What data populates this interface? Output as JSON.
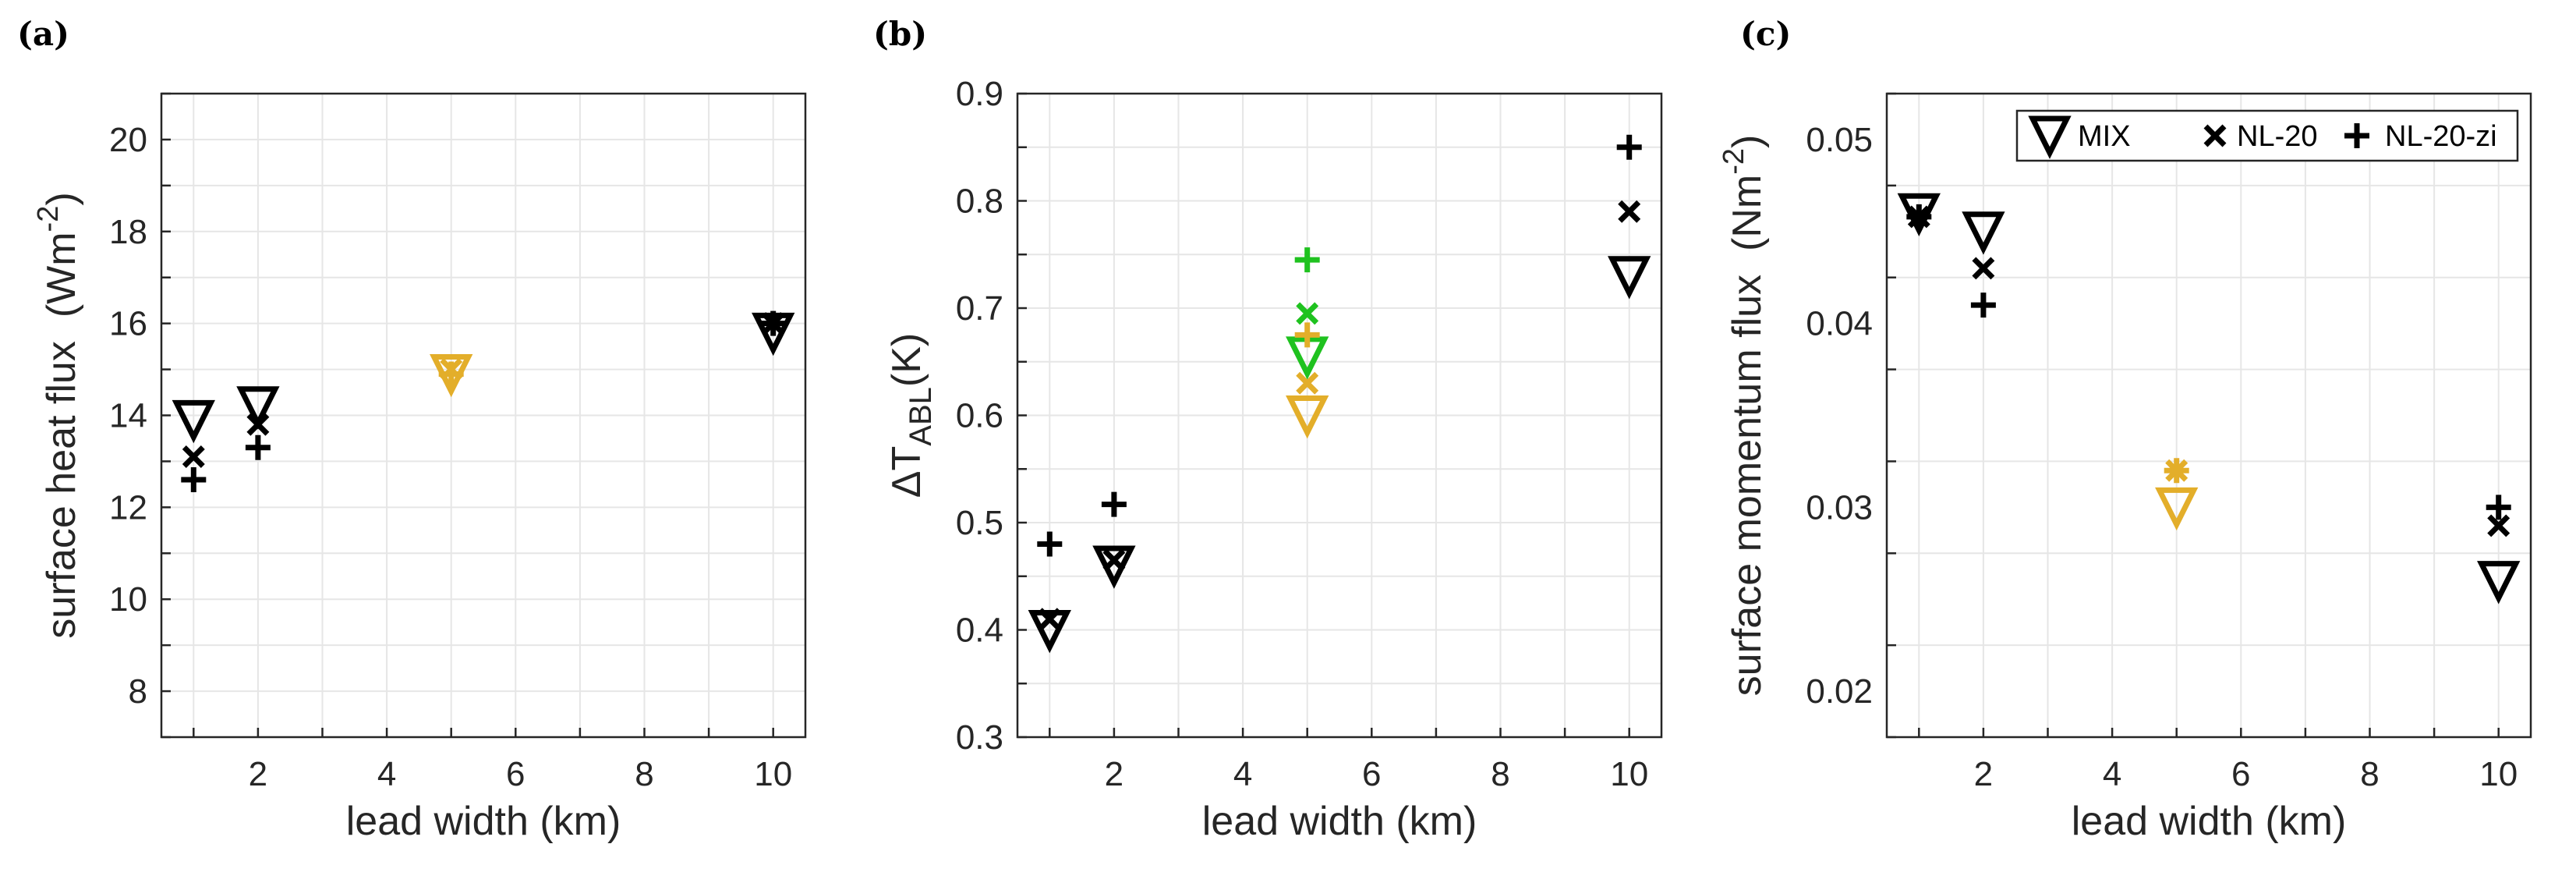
{
  "figure": {
    "colors": {
      "black": "#000000",
      "orange": "#E3AE2A",
      "green": "#1FC21F",
      "grid": "#e6e6e6",
      "axis": "#262626"
    }
  },
  "chart_data": [
    {
      "type": "scatter",
      "panel": "(a)",
      "title": "",
      "xlabel": "lead width (km)",
      "ylabel": "surface heat flux",
      "ylabel_unit_base": "(Wm",
      "ylabel_unit_exp": "-2",
      "ylabel_unit_close": ")",
      "xlim": [
        0.5,
        10.5
      ],
      "ylim": [
        7,
        21
      ],
      "xticks": [
        2,
        4,
        6,
        8,
        10
      ],
      "yticks": [
        8,
        10,
        12,
        14,
        16,
        18,
        20
      ],
      "grid": true,
      "legend": null,
      "series": [
        {
          "name": "MIX",
          "marker": "triangle-down",
          "points": [
            {
              "x": 1,
              "y": 13.9,
              "color": "black"
            },
            {
              "x": 2,
              "y": 14.2,
              "color": "black"
            },
            {
              "x": 5,
              "y": 14.9,
              "color": "orange"
            },
            {
              "x": 10,
              "y": 15.8,
              "color": "black"
            }
          ]
        },
        {
          "name": "NL-20",
          "marker": "x",
          "points": [
            {
              "x": 1,
              "y": 13.1,
              "color": "black"
            },
            {
              "x": 2,
              "y": 13.8,
              "color": "black"
            },
            {
              "x": 5,
              "y": 15.0,
              "color": "orange"
            },
            {
              "x": 10,
              "y": 16.0,
              "color": "black"
            }
          ]
        },
        {
          "name": "NL-20-zi",
          "marker": "plus",
          "points": [
            {
              "x": 1,
              "y": 12.6,
              "color": "black"
            },
            {
              "x": 2,
              "y": 13.3,
              "color": "black"
            },
            {
              "x": 5,
              "y": 14.9,
              "color": "orange"
            },
            {
              "x": 10,
              "y": 16.0,
              "color": "black"
            }
          ]
        }
      ]
    },
    {
      "type": "scatter",
      "panel": "(b)",
      "title": "",
      "xlabel": "lead width (km)",
      "ylabel_prefix": "ΔT",
      "ylabel_subscript": "ABL",
      "ylabel_suffix": "(K)",
      "xlim": [
        0.5,
        10.5
      ],
      "ylim": [
        0.3,
        0.9
      ],
      "xticks": [
        2,
        4,
        6,
        8,
        10
      ],
      "yticks": [
        0.3,
        0.4,
        0.5,
        0.6,
        0.7,
        0.8,
        0.9
      ],
      "grid": true,
      "legend": null,
      "series": [
        {
          "name": "MIX",
          "marker": "triangle-down",
          "points": [
            {
              "x": 1,
              "y": 0.4,
              "color": "black"
            },
            {
              "x": 2,
              "y": 0.46,
              "color": "black"
            },
            {
              "x": 5,
              "y": 0.6,
              "color": "orange"
            },
            {
              "x": 5,
              "y": 0.655,
              "color": "green"
            },
            {
              "x": 10,
              "y": 0.73,
              "color": "black"
            }
          ]
        },
        {
          "name": "NL-20",
          "marker": "x",
          "points": [
            {
              "x": 1,
              "y": 0.41,
              "color": "black"
            },
            {
              "x": 2,
              "y": 0.465,
              "color": "black"
            },
            {
              "x": 5,
              "y": 0.63,
              "color": "orange"
            },
            {
              "x": 5,
              "y": 0.695,
              "color": "green"
            },
            {
              "x": 10,
              "y": 0.79,
              "color": "black"
            }
          ]
        },
        {
          "name": "NL-20-zi",
          "marker": "plus",
          "points": [
            {
              "x": 1,
              "y": 0.48,
              "color": "black"
            },
            {
              "x": 2,
              "y": 0.517,
              "color": "black"
            },
            {
              "x": 5,
              "y": 0.675,
              "color": "orange"
            },
            {
              "x": 5,
              "y": 0.745,
              "color": "green"
            },
            {
              "x": 10,
              "y": 0.85,
              "color": "black"
            }
          ]
        }
      ]
    },
    {
      "type": "scatter",
      "panel": "(c)",
      "title": "",
      "xlabel": "lead width (km)",
      "ylabel": "surface momentum flux",
      "ylabel_unit_base": "(Nm",
      "ylabel_unit_exp": "-2",
      "ylabel_unit_close": ")",
      "xlim": [
        0.5,
        10.5
      ],
      "ylim": [
        0.0175,
        0.0525
      ],
      "xticks": [
        2,
        4,
        6,
        8,
        10
      ],
      "yticks": [
        0.02,
        0.03,
        0.04,
        0.05
      ],
      "ytick_labels": [
        "0.02",
        "0.03",
        "0.04",
        "0.05"
      ],
      "grid": true,
      "legend": {
        "placement": "top-right",
        "entries": [
          {
            "label": "MIX",
            "marker": "triangle-down"
          },
          {
            "label": "NL-20",
            "marker": "x"
          },
          {
            "label": "NL-20-zi",
            "marker": "plus"
          }
        ]
      },
      "series": [
        {
          "name": "MIX",
          "marker": "triangle-down",
          "points": [
            {
              "x": 1,
              "y": 0.046,
              "color": "black"
            },
            {
              "x": 2,
              "y": 0.045,
              "color": "black"
            },
            {
              "x": 5,
              "y": 0.03,
              "color": "orange"
            },
            {
              "x": 10,
              "y": 0.026,
              "color": "black"
            }
          ]
        },
        {
          "name": "NL-20",
          "marker": "x",
          "points": [
            {
              "x": 1,
              "y": 0.0458,
              "color": "black"
            },
            {
              "x": 2,
              "y": 0.043,
              "color": "black"
            },
            {
              "x": 5,
              "y": 0.032,
              "color": "orange"
            },
            {
              "x": 10,
              "y": 0.029,
              "color": "black"
            }
          ]
        },
        {
          "name": "NL-20-zi",
          "marker": "plus",
          "points": [
            {
              "x": 1,
              "y": 0.0458,
              "color": "black"
            },
            {
              "x": 2,
              "y": 0.041,
              "color": "black"
            },
            {
              "x": 5,
              "y": 0.032,
              "color": "orange"
            },
            {
              "x": 10,
              "y": 0.03,
              "color": "black"
            }
          ]
        }
      ]
    }
  ]
}
